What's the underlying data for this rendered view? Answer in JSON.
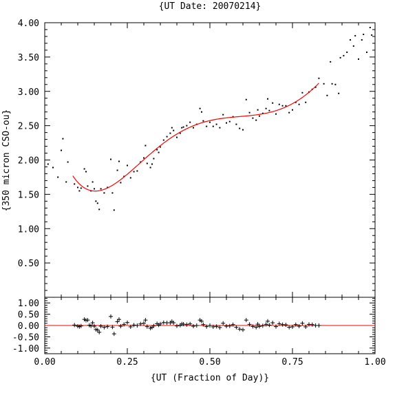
{
  "chart_data": {
    "title": "{UT Date: 20070214}",
    "xlabel": "{UT (Fraction of Day)}",
    "ylabel": "{350 micron CSO-ou}",
    "xlim": [
      0.0,
      1.0
    ],
    "xticks": [
      "0.00",
      "0.25",
      "0.50",
      "0.75",
      "1.00"
    ],
    "panels": [
      {
        "id": "main",
        "type": "scatter",
        "ylim": [
          0.0,
          4.0
        ],
        "yticks": [
          "0.50",
          "1.00",
          "1.50",
          "2.00",
          "2.50",
          "3.00",
          "3.50",
          "4.00"
        ],
        "points_color": "#000000",
        "fit_color": "#ff0000",
        "points": [
          [
            0.01,
            1.94
          ],
          [
            0.025,
            1.89
          ],
          [
            0.04,
            1.75
          ],
          [
            0.05,
            2.14
          ],
          [
            0.055,
            2.31
          ],
          [
            0.065,
            1.68
          ],
          [
            0.07,
            1.97
          ],
          [
            0.09,
            1.65
          ],
          [
            0.1,
            1.6
          ],
          [
            0.105,
            1.55
          ],
          [
            0.11,
            1.59
          ],
          [
            0.12,
            1.87
          ],
          [
            0.125,
            1.83
          ],
          [
            0.13,
            1.62
          ],
          [
            0.14,
            1.55
          ],
          [
            0.145,
            1.68
          ],
          [
            0.15,
            1.58
          ],
          [
            0.155,
            1.4
          ],
          [
            0.16,
            1.37
          ],
          [
            0.165,
            1.28
          ],
          [
            0.17,
            1.58
          ],
          [
            0.18,
            1.52
          ],
          [
            0.19,
            1.6
          ],
          [
            0.2,
            2.01
          ],
          [
            0.205,
            1.52
          ],
          [
            0.21,
            1.27
          ],
          [
            0.22,
            1.85
          ],
          [
            0.225,
            1.98
          ],
          [
            0.23,
            1.67
          ],
          [
            0.24,
            1.76
          ],
          [
            0.25,
            1.92
          ],
          [
            0.26,
            1.74
          ],
          [
            0.27,
            1.83
          ],
          [
            0.28,
            1.84
          ],
          [
            0.29,
            1.97
          ],
          [
            0.3,
            2.03
          ],
          [
            0.305,
            2.21
          ],
          [
            0.31,
            1.95
          ],
          [
            0.32,
            1.89
          ],
          [
            0.325,
            1.94
          ],
          [
            0.33,
            2.02
          ],
          [
            0.34,
            2.15
          ],
          [
            0.345,
            2.11
          ],
          [
            0.35,
            2.19
          ],
          [
            0.36,
            2.29
          ],
          [
            0.37,
            2.34
          ],
          [
            0.38,
            2.39
          ],
          [
            0.385,
            2.47
          ],
          [
            0.39,
            2.43
          ],
          [
            0.4,
            2.33
          ],
          [
            0.41,
            2.39
          ],
          [
            0.415,
            2.47
          ],
          [
            0.42,
            2.48
          ],
          [
            0.43,
            2.5
          ],
          [
            0.44,
            2.55
          ],
          [
            0.45,
            2.47
          ],
          [
            0.46,
            2.52
          ],
          [
            0.47,
            2.75
          ],
          [
            0.475,
            2.7
          ],
          [
            0.48,
            2.57
          ],
          [
            0.49,
            2.49
          ],
          [
            0.5,
            2.55
          ],
          [
            0.51,
            2.49
          ],
          [
            0.52,
            2.52
          ],
          [
            0.53,
            2.47
          ],
          [
            0.54,
            2.66
          ],
          [
            0.55,
            2.54
          ],
          [
            0.56,
            2.56
          ],
          [
            0.57,
            2.63
          ],
          [
            0.58,
            2.52
          ],
          [
            0.59,
            2.46
          ],
          [
            0.6,
            2.44
          ],
          [
            0.61,
            2.88
          ],
          [
            0.62,
            2.69
          ],
          [
            0.63,
            2.61
          ],
          [
            0.64,
            2.58
          ],
          [
            0.645,
            2.73
          ],
          [
            0.65,
            2.64
          ],
          [
            0.66,
            2.68
          ],
          [
            0.67,
            2.75
          ],
          [
            0.675,
            2.89
          ],
          [
            0.68,
            2.72
          ],
          [
            0.69,
            2.83
          ],
          [
            0.7,
            2.67
          ],
          [
            0.71,
            2.81
          ],
          [
            0.72,
            2.79
          ],
          [
            0.73,
            2.79
          ],
          [
            0.74,
            2.69
          ],
          [
            0.75,
            2.73
          ],
          [
            0.76,
            2.84
          ],
          [
            0.77,
            2.81
          ],
          [
            0.78,
            2.98
          ],
          [
            0.79,
            2.84
          ],
          [
            0.8,
            2.99
          ],
          [
            0.81,
            3.03
          ],
          [
            0.82,
            3.06
          ],
          [
            0.83,
            3.19
          ],
          [
            0.845,
            3.11
          ],
          [
            0.855,
            2.94
          ],
          [
            0.865,
            3.43
          ],
          [
            0.87,
            3.11
          ],
          [
            0.88,
            3.1
          ],
          [
            0.89,
            2.97
          ],
          [
            0.895,
            3.49
          ],
          [
            0.905,
            3.52
          ],
          [
            0.915,
            3.57
          ],
          [
            0.925,
            3.75
          ],
          [
            0.935,
            3.66
          ],
          [
            0.94,
            3.81
          ],
          [
            0.95,
            3.47
          ],
          [
            0.96,
            3.75
          ],
          [
            0.965,
            3.83
          ],
          [
            0.975,
            3.57
          ],
          [
            0.985,
            3.93
          ],
          [
            0.99,
            3.82
          ]
        ],
        "fit_x_range": [
          0.085,
          0.83
        ]
      },
      {
        "id": "residuals",
        "type": "scatter",
        "ylim": [
          -1.25,
          1.25
        ],
        "yticks": [
          "-1.00",
          "-0.50",
          "0.00",
          "0.50",
          "1.00"
        ],
        "zero_line_color": "#ff0000",
        "points": [
          [
            0.09,
            0.02
          ],
          [
            0.1,
            -0.03
          ],
          [
            0.105,
            -0.05
          ],
          [
            0.11,
            -0.02
          ],
          [
            0.12,
            0.27
          ],
          [
            0.125,
            0.23
          ],
          [
            0.13,
            0.24
          ],
          [
            0.135,
            0.01
          ],
          [
            0.14,
            -0.02
          ],
          [
            0.145,
            0.12
          ],
          [
            0.15,
            -0.03
          ],
          [
            0.155,
            -0.18
          ],
          [
            0.16,
            -0.2
          ],
          [
            0.165,
            -0.3
          ],
          [
            0.17,
            -0.03
          ],
          [
            0.18,
            -0.08
          ],
          [
            0.19,
            -0.05
          ],
          [
            0.2,
            0.4
          ],
          [
            0.205,
            -0.07
          ],
          [
            0.21,
            -0.37
          ],
          [
            0.22,
            0.17
          ],
          [
            0.225,
            0.27
          ],
          [
            0.23,
            -0.03
          ],
          [
            0.24,
            0.05
          ],
          [
            0.25,
            0.13
          ],
          [
            0.26,
            -0.06
          ],
          [
            0.27,
            0.02
          ],
          [
            0.28,
            0.0
          ],
          [
            0.29,
            0.07
          ],
          [
            0.3,
            0.1
          ],
          [
            0.305,
            0.24
          ],
          [
            0.31,
            -0.05
          ],
          [
            0.32,
            -0.12
          ],
          [
            0.325,
            -0.08
          ],
          [
            0.33,
            -0.02
          ],
          [
            0.34,
            0.08
          ],
          [
            0.345,
            0.02
          ],
          [
            0.35,
            0.07
          ],
          [
            0.36,
            0.13
          ],
          [
            0.37,
            0.12
          ],
          [
            0.38,
            0.12
          ],
          [
            0.385,
            0.18
          ],
          [
            0.39,
            0.12
          ],
          [
            0.4,
            -0.02
          ],
          [
            0.41,
            0.01
          ],
          [
            0.415,
            0.07
          ],
          [
            0.42,
            0.06
          ],
          [
            0.43,
            0.04
          ],
          [
            0.44,
            0.07
          ],
          [
            0.45,
            -0.03
          ],
          [
            0.46,
            0.0
          ],
          [
            0.47,
            0.24
          ],
          [
            0.475,
            0.19
          ],
          [
            0.48,
            0.04
          ],
          [
            0.49,
            -0.05
          ],
          [
            0.5,
            0.0
          ],
          [
            0.51,
            -0.06
          ],
          [
            0.52,
            -0.04
          ],
          [
            0.53,
            -0.09
          ],
          [
            0.54,
            0.1
          ],
          [
            0.55,
            -0.03
          ],
          [
            0.56,
            -0.02
          ],
          [
            0.57,
            0.04
          ],
          [
            0.58,
            -0.08
          ],
          [
            0.59,
            -0.16
          ],
          [
            0.6,
            -0.19
          ],
          [
            0.61,
            0.24
          ],
          [
            0.62,
            0.05
          ],
          [
            0.63,
            -0.04
          ],
          [
            0.64,
            -0.08
          ],
          [
            0.645,
            0.06
          ],
          [
            0.65,
            -0.04
          ],
          [
            0.66,
            -0.01
          ],
          [
            0.67,
            0.05
          ],
          [
            0.675,
            0.19
          ],
          [
            0.68,
            0.02
          ],
          [
            0.69,
            0.12
          ],
          [
            0.7,
            -0.05
          ],
          [
            0.71,
            0.08
          ],
          [
            0.72,
            0.04
          ],
          [
            0.73,
            0.03
          ],
          [
            0.74,
            -0.08
          ],
          [
            0.75,
            -0.06
          ],
          [
            0.76,
            0.04
          ],
          [
            0.77,
            -0.03
          ],
          [
            0.78,
            0.1
          ],
          [
            0.79,
            -0.06
          ],
          [
            0.8,
            0.05
          ],
          [
            0.81,
            0.04
          ],
          [
            0.82,
            0.0
          ],
          [
            0.83,
            0.0
          ]
        ]
      }
    ]
  }
}
